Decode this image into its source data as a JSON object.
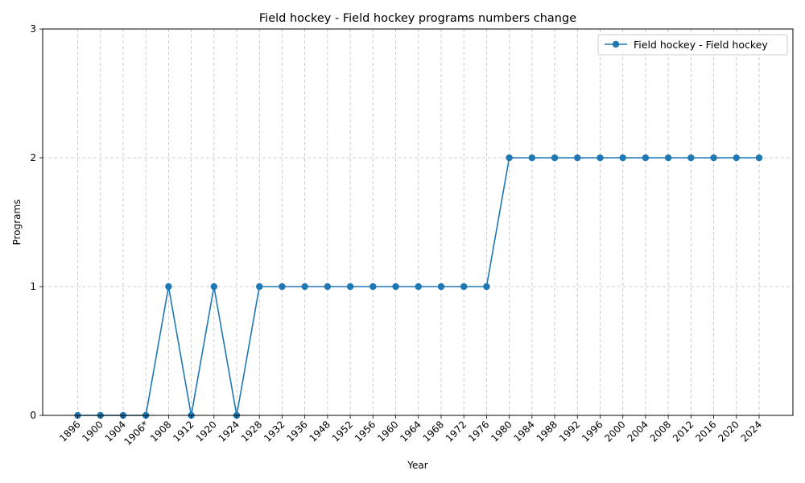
{
  "chart_data": {
    "type": "line",
    "title": "Field hockey - Field hockey programs numbers change",
    "xlabel": "Year",
    "ylabel": "Programs",
    "categories": [
      "1896",
      "1900",
      "1904",
      "1906*",
      "1908",
      "1912",
      "1920",
      "1924",
      "1928",
      "1932",
      "1936",
      "1948",
      "1952",
      "1956",
      "1960",
      "1964",
      "1968",
      "1972",
      "1976",
      "1980",
      "1984",
      "1988",
      "1992",
      "1996",
      "2000",
      "2004",
      "2008",
      "2012",
      "2016",
      "2020",
      "2024"
    ],
    "series": [
      {
        "name": "Field hockey - Field hockey",
        "color": "#1f77b4",
        "values": [
          0,
          0,
          0,
          0,
          1,
          0,
          1,
          0,
          1,
          1,
          1,
          1,
          1,
          1,
          1,
          1,
          1,
          1,
          1,
          2,
          2,
          2,
          2,
          2,
          2,
          2,
          2,
          2,
          2,
          2,
          2
        ]
      }
    ],
    "ylim": [
      0,
      3
    ],
    "yticks": [
      0,
      1,
      2,
      3
    ],
    "grid": true,
    "legend_position": "top-right"
  }
}
